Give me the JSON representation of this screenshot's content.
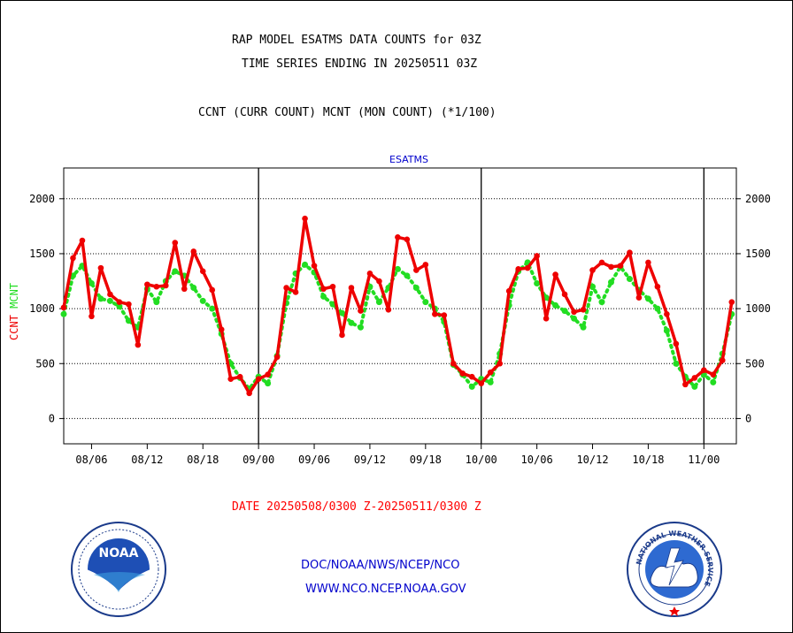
{
  "header": {
    "title_line1": "RAP MODEL ESATMS DATA COUNTS for 03Z",
    "title_line2": "TIME SERIES ENDING IN 20250511 03Z",
    "title_line3": "CCNT (CURR COUNT) MCNT (MON COUNT) (*1/100)"
  },
  "footer": {
    "date_range": "DATE 20250508/0300 Z-20250511/0300 Z",
    "org_path": "DOC/NOAA/NWS/NCEP/NCO",
    "website": "WWW.NCO.NCEP.NOAA.GOV"
  },
  "logos": {
    "left": "NOAA",
    "right": "NATIONAL WEATHER SERVICE"
  },
  "chart_data": {
    "type": "line",
    "title": "ESATMS",
    "ylabel_parts": [
      "CCNT",
      "MCNT"
    ],
    "ylim": [
      -230,
      2280
    ],
    "yticks": [
      0,
      500,
      1000,
      1500,
      2000
    ],
    "xlim": [
      0,
      72.5
    ],
    "xtick_positions": [
      3,
      9,
      15,
      21,
      27,
      33,
      39,
      45,
      51,
      57,
      63,
      69
    ],
    "xtick_labels": [
      "08/06",
      "08/12",
      "08/18",
      "09/00",
      "09/06",
      "09/12",
      "09/18",
      "10/00",
      "10/06",
      "10/12",
      "10/18",
      "11/00"
    ],
    "day_boundaries": [
      21,
      45,
      69
    ],
    "grid": true,
    "colors": {
      "ccnt": "#ee0000",
      "mcnt": "#22dd22",
      "title": "#0000cc",
      "text": "#000000"
    },
    "series": [
      {
        "name": "CCNT",
        "values": [
          1010,
          1460,
          1620,
          930,
          1370,
          1130,
          1060,
          1040,
          670,
          1220,
          1200,
          1210,
          1600,
          1180,
          1520,
          1340,
          1170,
          810,
          360,
          380,
          230,
          360,
          400,
          560,
          1190,
          1150,
          1820,
          1390,
          1180,
          1200,
          760,
          1190,
          980,
          1320,
          1250,
          990,
          1650,
          1630,
          1350,
          1400,
          950,
          940,
          500,
          410,
          380,
          320,
          420,
          500,
          1160,
          1360,
          1370,
          1480,
          910,
          1310,
          1130,
          970,
          990,
          1350,
          1420,
          1380,
          1390,
          1510,
          1100,
          1420,
          1200,
          950,
          680,
          310,
          370,
          440,
          400,
          530,
          1060
        ]
      },
      {
        "name": "MCNT",
        "values": [
          950,
          1300,
          1390,
          1230,
          1090,
          1070,
          1020,
          890,
          830,
          1180,
          1060,
          1250,
          1340,
          1300,
          1190,
          1070,
          1000,
          770,
          500,
          370,
          270,
          380,
          320,
          570,
          1050,
          1320,
          1400,
          1330,
          1110,
          1040,
          960,
          870,
          830,
          1200,
          1060,
          1190,
          1360,
          1300,
          1190,
          1060,
          1000,
          880,
          490,
          400,
          290,
          360,
          330,
          590,
          1030,
          1340,
          1420,
          1230,
          1100,
          1030,
          980,
          910,
          830,
          1200,
          1060,
          1240,
          1380,
          1270,
          1170,
          1090,
          1000,
          800,
          500,
          380,
          290,
          400,
          330,
          590,
          950
        ]
      }
    ]
  }
}
